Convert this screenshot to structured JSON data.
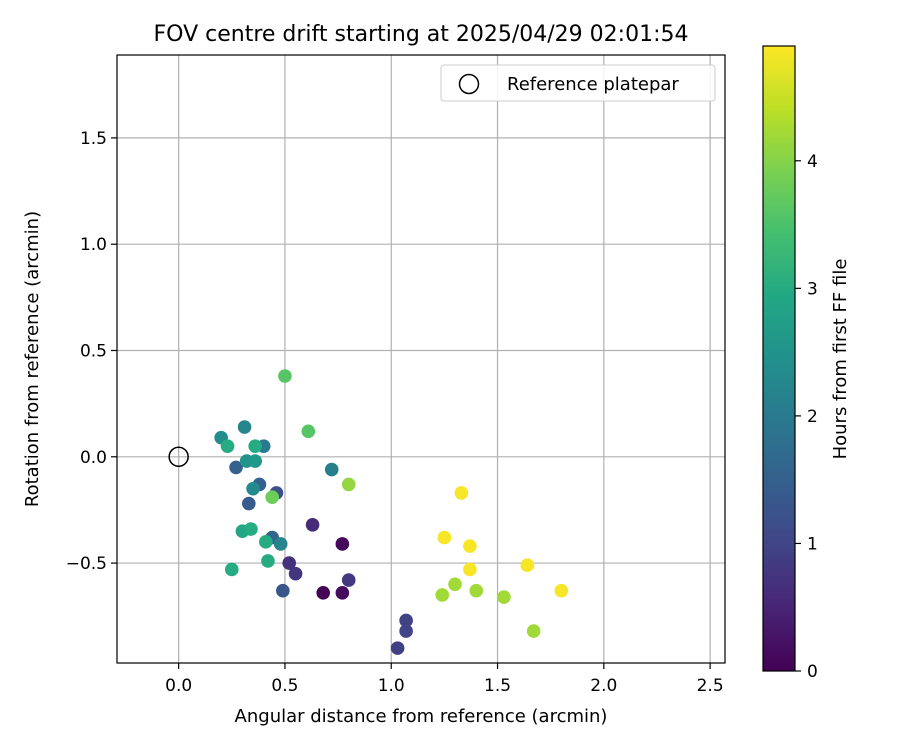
{
  "chart_data": {
    "type": "scatter",
    "title": "FOV centre drift starting at 2025/04/29 02:01:54",
    "xlabel": "Angular distance from reference (arcmin)",
    "ylabel": "Rotation from reference (arcmin)",
    "xlim": [
      -0.29,
      2.57
    ],
    "ylim": [
      -0.97,
      1.89
    ],
    "xticks": [
      0.0,
      0.5,
      1.0,
      1.5,
      2.0,
      2.5
    ],
    "xtick_labels": [
      "0.0",
      "0.5",
      "1.0",
      "1.5",
      "2.0",
      "2.5"
    ],
    "yticks": [
      -0.5,
      0.0,
      0.5,
      1.0,
      1.5
    ],
    "ytick_labels": [
      "−0.5",
      "0.0",
      "0.5",
      "1.0",
      "1.5"
    ],
    "grid": true,
    "legend": {
      "position": "top-right",
      "entries": [
        {
          "label": "Reference platepar",
          "marker": "open-circle",
          "color": "#000000"
        }
      ]
    },
    "reference_point": {
      "x": 0.0,
      "y": 0.0
    },
    "colorbar": {
      "label": "Hours from first FF file",
      "colormap": "viridis",
      "range": [
        0,
        4.9
      ],
      "ticks": [
        0,
        1,
        2,
        3,
        4
      ],
      "tick_labels": [
        "0",
        "1",
        "2",
        "3",
        "4"
      ]
    },
    "series": [
      {
        "points": [
          {
            "x": 0.68,
            "y": -0.64,
            "c": 0.05
          },
          {
            "x": 0.77,
            "y": -0.64,
            "c": 0.15
          },
          {
            "x": 0.77,
            "y": -0.41,
            "c": 0.1
          },
          {
            "x": 0.63,
            "y": -0.32,
            "c": 0.6
          },
          {
            "x": 0.8,
            "y": -0.58,
            "c": 0.8
          },
          {
            "x": 1.03,
            "y": -0.9,
            "c": 0.9
          },
          {
            "x": 1.07,
            "y": -0.77,
            "c": 0.95
          },
          {
            "x": 1.07,
            "y": -0.82,
            "c": 1.0
          },
          {
            "x": 0.52,
            "y": -0.5,
            "c": 0.7
          },
          {
            "x": 0.55,
            "y": -0.55,
            "c": 0.75
          },
          {
            "x": 0.49,
            "y": -0.63,
            "c": 1.3
          },
          {
            "x": 0.46,
            "y": -0.17,
            "c": 1.2
          },
          {
            "x": 0.33,
            "y": -0.22,
            "c": 1.4
          },
          {
            "x": 0.27,
            "y": -0.05,
            "c": 1.5
          },
          {
            "x": 0.38,
            "y": -0.13,
            "c": 1.5
          },
          {
            "x": 0.44,
            "y": -0.38,
            "c": 1.6
          },
          {
            "x": 0.48,
            "y": -0.41,
            "c": 2.2
          },
          {
            "x": 0.35,
            "y": -0.15,
            "c": 2.3
          },
          {
            "x": 0.4,
            "y": 0.05,
            "c": 2.0
          },
          {
            "x": 0.31,
            "y": 0.14,
            "c": 2.2
          },
          {
            "x": 0.2,
            "y": 0.09,
            "c": 2.4
          },
          {
            "x": 0.72,
            "y": -0.06,
            "c": 2.1
          },
          {
            "x": 0.32,
            "y": -0.02,
            "c": 2.5
          },
          {
            "x": 0.36,
            "y": -0.02,
            "c": 2.6
          },
          {
            "x": 0.36,
            "y": 0.05,
            "c": 3.0
          },
          {
            "x": 0.23,
            "y": 0.05,
            "c": 3.0
          },
          {
            "x": 0.3,
            "y": -0.35,
            "c": 2.9
          },
          {
            "x": 0.34,
            "y": -0.34,
            "c": 3.0
          },
          {
            "x": 0.41,
            "y": -0.4,
            "c": 3.0
          },
          {
            "x": 0.42,
            "y": -0.49,
            "c": 3.0
          },
          {
            "x": 0.25,
            "y": -0.53,
            "c": 3.0
          },
          {
            "x": 0.44,
            "y": -0.19,
            "c": 3.8
          },
          {
            "x": 0.5,
            "y": 0.38,
            "c": 3.6
          },
          {
            "x": 0.61,
            "y": 0.12,
            "c": 3.6
          },
          {
            "x": 0.8,
            "y": -0.13,
            "c": 4.1
          },
          {
            "x": 1.24,
            "y": -0.65,
            "c": 4.2
          },
          {
            "x": 1.3,
            "y": -0.6,
            "c": 4.2
          },
          {
            "x": 1.4,
            "y": -0.63,
            "c": 4.2
          },
          {
            "x": 1.53,
            "y": -0.66,
            "c": 4.2
          },
          {
            "x": 1.67,
            "y": -0.82,
            "c": 4.2
          },
          {
            "x": 1.33,
            "y": -0.17,
            "c": 4.85
          },
          {
            "x": 1.25,
            "y": -0.38,
            "c": 4.85
          },
          {
            "x": 1.37,
            "y": -0.42,
            "c": 4.85
          },
          {
            "x": 1.37,
            "y": -0.53,
            "c": 4.85
          },
          {
            "x": 1.64,
            "y": -0.51,
            "c": 4.85
          },
          {
            "x": 1.8,
            "y": -0.63,
            "c": 4.85
          }
        ]
      }
    ]
  }
}
